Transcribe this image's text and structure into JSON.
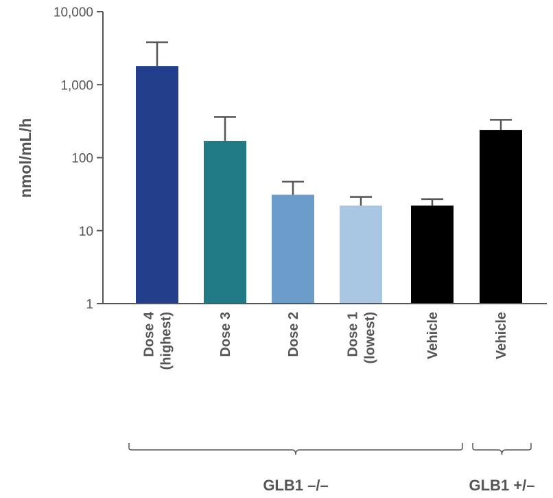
{
  "chart_data": {
    "type": "bar",
    "title": "",
    "ylabel": "nmol/mL/h",
    "xlabel": "",
    "yscale": "log",
    "ylim": [
      1,
      10000
    ],
    "yticks": [
      1,
      10,
      100,
      1000,
      10000
    ],
    "ytick_labels": [
      "1",
      "10",
      "100",
      "1,000",
      "10,000"
    ],
    "categories": [
      [
        "Dose 4",
        "(highest)"
      ],
      [
        "Dose 3"
      ],
      [
        "Dose 2"
      ],
      [
        "Dose 1",
        "(lowest)"
      ],
      [
        "Vehicle"
      ],
      [
        "Vehicle"
      ]
    ],
    "values": [
      1800,
      170,
      31,
      22,
      22,
      240
    ],
    "error_upper": [
      3800,
      360,
      47,
      29,
      27,
      330
    ],
    "colors": [
      "#233f8b",
      "#1f7a85",
      "#6c9cc9",
      "#a9c6e2",
      "#000000",
      "#000000"
    ],
    "groups": [
      {
        "label": "GLB1 –/–",
        "from": 0,
        "to": 4
      },
      {
        "label": "GLB1 +/–",
        "from": 5,
        "to": 5
      }
    ]
  }
}
